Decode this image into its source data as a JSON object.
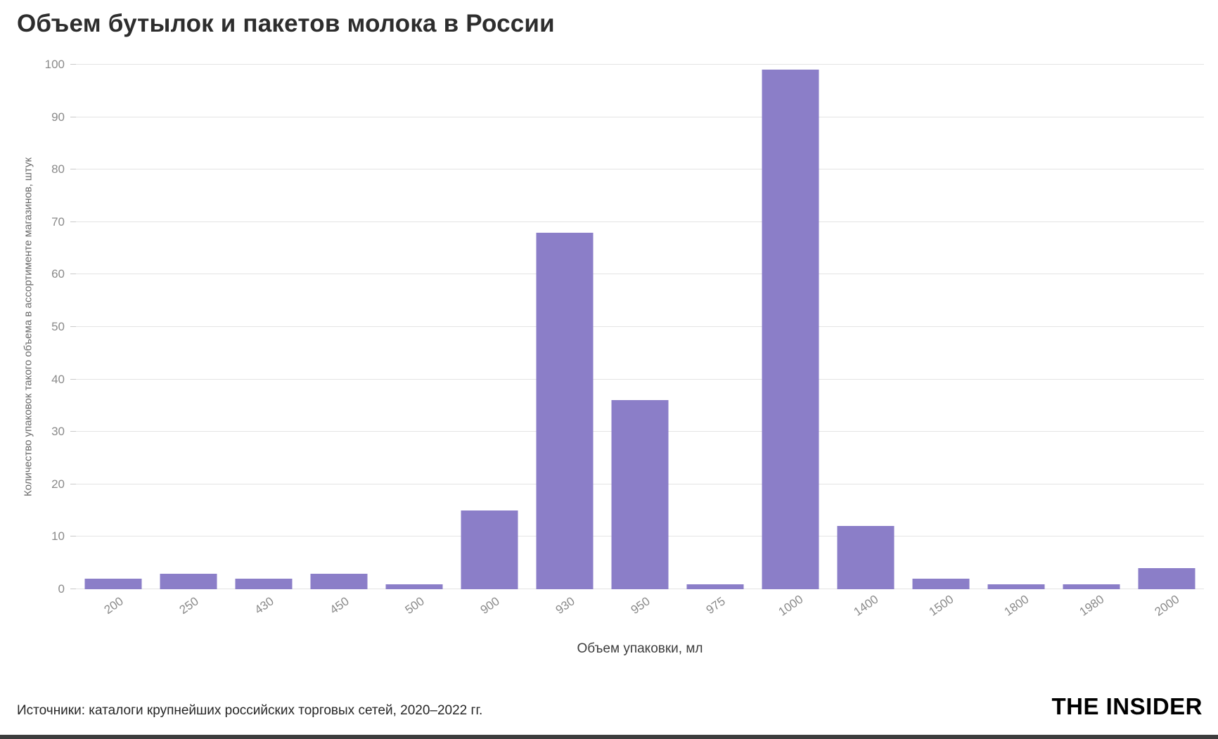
{
  "title": "Объем бутылок и пакетов молока в России",
  "footer": {
    "source": "Источники: каталоги крупнейших российских торговых сетей, 2020–2022 гг.",
    "brand": "THE INSIDER"
  },
  "chart_data": {
    "type": "bar",
    "title": "Объем бутылок и пакетов молока в России",
    "categories": [
      "200",
      "250",
      "430",
      "450",
      "500",
      "900",
      "930",
      "950",
      "975",
      "1000",
      "1400",
      "1500",
      "1800",
      "1980",
      "2000"
    ],
    "values": [
      2,
      3,
      2,
      3,
      1,
      15,
      68,
      36,
      1,
      99,
      12,
      2,
      1,
      1,
      4
    ],
    "xlabel": "Объем упаковки, мл",
    "ylabel": "Количество упаковок такого объема в ассортименте магазинов, штук",
    "ylim": [
      0,
      100
    ],
    "yticks": [
      0,
      10,
      20,
      30,
      40,
      50,
      60,
      70,
      80,
      90,
      100
    ],
    "ytick_step": 10,
    "x_tick_rotation": -35,
    "grid": true,
    "legend": false,
    "bar_color": "#8b7ec8",
    "gridline_color": "#e4e4e4",
    "tick_text_color": "#8a8a8a"
  }
}
